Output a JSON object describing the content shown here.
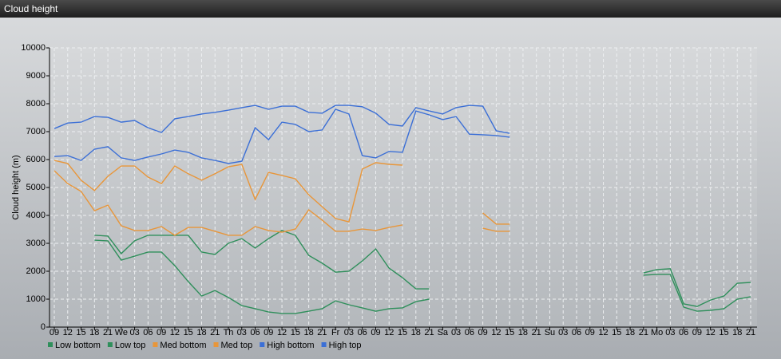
{
  "chart_data": {
    "type": "line",
    "title": "Cloud height",
    "y_label": "Cloud height (m)",
    "categories": [
      "09",
      "12",
      "15",
      "18",
      "21",
      "We",
      "03",
      "06",
      "09",
      "12",
      "15",
      "18",
      "21",
      "Th",
      "03",
      "06",
      "09",
      "12",
      "15",
      "18",
      "21",
      "Fr",
      "03",
      "06",
      "09",
      "12",
      "15",
      "18",
      "21",
      "Sa",
      "03",
      "06",
      "09",
      "12",
      "15",
      "18",
      "21",
      "Su",
      "03",
      "06",
      "09",
      "12",
      "15",
      "18",
      "21",
      "Mo",
      "03",
      "06",
      "09",
      "12",
      "15",
      "18",
      "21"
    ],
    "ylim": [
      0,
      10000
    ],
    "yticks": [
      0,
      1000,
      2000,
      3000,
      4000,
      5000,
      6000,
      7000,
      8000,
      9000,
      10000
    ],
    "grid": true,
    "series": [
      {
        "name": "Low bottom",
        "color": "#2f8f5b",
        "values": [
          null,
          null,
          null,
          3110,
          3090,
          2400,
          2540,
          2690,
          2690,
          2200,
          1630,
          1110,
          1310,
          1060,
          770,
          660,
          540,
          490,
          490,
          570,
          660,
          940,
          800,
          690,
          570,
          660,
          690,
          910,
          1000,
          null,
          null,
          null,
          null,
          null,
          null,
          null,
          null,
          null,
          null,
          null,
          null,
          null,
          null,
          null,
          1860,
          1890,
          1890,
          710,
          570,
          600,
          660,
          1000,
          1090
        ]
      },
      {
        "name": "Low top",
        "color": "#2f8f5b",
        "values": [
          null,
          null,
          null,
          3290,
          3260,
          2630,
          3090,
          3290,
          3290,
          3290,
          3290,
          2690,
          2600,
          3000,
          3170,
          2830,
          3170,
          3460,
          3290,
          2570,
          2290,
          1970,
          2000,
          2370,
          2800,
          2110,
          1770,
          1370,
          1370,
          null,
          null,
          null,
          null,
          null,
          null,
          null,
          null,
          null,
          null,
          null,
          null,
          null,
          null,
          null,
          1940,
          2060,
          2090,
          830,
          740,
          970,
          1110,
          1570,
          1600
        ]
      },
      {
        "name": "Med bottom",
        "color": "#e8963a",
        "values": [
          5600,
          5140,
          4860,
          4170,
          4370,
          3630,
          3460,
          3460,
          3600,
          3290,
          3570,
          3570,
          3430,
          3290,
          3290,
          3600,
          3460,
          3400,
          3510,
          4200,
          3830,
          3430,
          3430,
          3510,
          3460,
          3570,
          3660,
          null,
          null,
          null,
          null,
          null,
          3540,
          3430,
          3430,
          null,
          null,
          null,
          null,
          null,
          null,
          null,
          null,
          null,
          null,
          null,
          null,
          null,
          null,
          null,
          null,
          null,
          null
        ]
      },
      {
        "name": "Med top",
        "color": "#e8963a",
        "values": [
          5970,
          5860,
          5260,
          4890,
          5400,
          5770,
          5770,
          5370,
          5140,
          5770,
          5490,
          5260,
          5490,
          5740,
          5830,
          4570,
          5540,
          5430,
          5310,
          4740,
          4310,
          3890,
          3770,
          5660,
          5890,
          5830,
          5800,
          null,
          null,
          null,
          null,
          null,
          4090,
          3690,
          3690,
          null,
          null,
          null,
          null,
          null,
          null,
          null,
          null,
          null,
          null,
          null,
          null,
          null,
          null,
          null,
          null,
          null,
          null
        ]
      },
      {
        "name": "High bottom",
        "color": "#3b6fd6",
        "values": [
          6110,
          6140,
          5970,
          6370,
          6460,
          6060,
          5970,
          6090,
          6200,
          6340,
          6260,
          6060,
          5970,
          5860,
          5940,
          7140,
          6710,
          7340,
          7260,
          7000,
          7060,
          7800,
          7630,
          6140,
          6060,
          6290,
          6260,
          7740,
          7600,
          7430,
          7540,
          6910,
          6890,
          6860,
          6800,
          null,
          null,
          null,
          null,
          null,
          null,
          null,
          null,
          null,
          null,
          null,
          null,
          null,
          null,
          null,
          null,
          null,
          null
        ]
      },
      {
        "name": "High top",
        "color": "#3b6fd6",
        "values": [
          7110,
          7310,
          7340,
          7540,
          7510,
          7340,
          7400,
          7140,
          6970,
          7460,
          7540,
          7630,
          7690,
          7770,
          7860,
          7940,
          7800,
          7910,
          7910,
          7690,
          7660,
          7940,
          7940,
          7890,
          7660,
          7260,
          7200,
          7860,
          7740,
          7630,
          7860,
          7940,
          7910,
          7030,
          6940,
          null,
          null,
          null,
          null,
          null,
          null,
          null,
          null,
          null,
          null,
          null,
          null,
          null,
          null,
          null,
          null,
          null,
          null
        ]
      }
    ]
  }
}
